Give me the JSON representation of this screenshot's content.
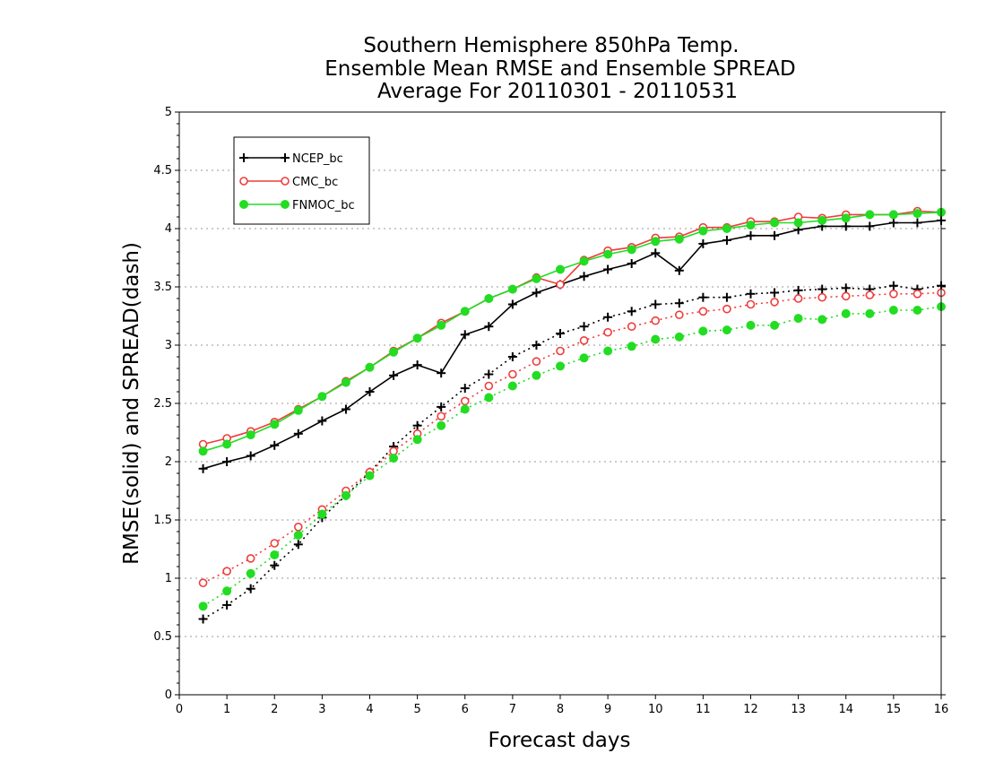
{
  "chart_data": {
    "type": "line",
    "title_lines": [
      "Southern Hemisphere 850hPa Temp.",
      "Ensemble Mean RMSE and Ensemble SPREAD",
      "Average For 20110301 - 20110531"
    ],
    "xlabel": "Forecast days",
    "ylabel": "RMSE(solid) and SPREAD(dash)",
    "xlim": [
      0,
      16
    ],
    "ylim": [
      0,
      5
    ],
    "x_ticks": [
      "0",
      "1",
      "2",
      "3",
      "4",
      "5",
      "6",
      "7",
      "8",
      "9",
      "10",
      "11",
      "12",
      "13",
      "14",
      "15",
      "16"
    ],
    "y_ticks": [
      "0",
      "0.5",
      "1",
      "1.5",
      "2",
      "2.5",
      "3",
      "3.5",
      "4",
      "4.5",
      "5"
    ],
    "grid": "horizontal dotted",
    "legend_position": "top-left",
    "legend": [
      "NCEP_bc",
      "CMC_bc",
      "FNMOC_bc"
    ],
    "x": [
      0.5,
      1,
      1.5,
      2,
      2.5,
      3,
      3.5,
      4,
      4.5,
      5,
      5.5,
      6,
      6.5,
      7,
      7.5,
      8,
      8.5,
      9,
      9.5,
      10,
      10.5,
      11,
      11.5,
      12,
      12.5,
      13,
      13.5,
      14,
      14.5,
      15,
      15.5,
      16
    ],
    "series": [
      {
        "name": "NCEP_bc",
        "kind": "rmse",
        "style": "solid",
        "marker": "plus",
        "color": "#000000",
        "values": [
          1.94,
          2.0,
          2.05,
          2.14,
          2.24,
          2.35,
          2.45,
          2.6,
          2.74,
          2.83,
          2.76,
          3.09,
          3.16,
          3.35,
          3.45,
          3.52,
          3.59,
          3.65,
          3.7,
          3.79,
          3.64,
          3.87,
          3.9,
          3.94,
          3.94,
          3.99,
          4.02,
          4.02,
          4.02,
          4.05,
          4.05,
          4.07
        ]
      },
      {
        "name": "CMC_bc",
        "kind": "rmse",
        "style": "solid",
        "marker": "circle-open",
        "color": "#f03c3c",
        "values": [
          2.15,
          2.2,
          2.26,
          2.34,
          2.45,
          2.56,
          2.69,
          2.81,
          2.95,
          3.06,
          3.19,
          3.29,
          3.4,
          3.48,
          3.58,
          3.52,
          3.73,
          3.81,
          3.84,
          3.92,
          3.93,
          4.01,
          4.01,
          4.06,
          4.06,
          4.1,
          4.09,
          4.12,
          4.12,
          4.12,
          4.15,
          4.14
        ]
      },
      {
        "name": "FNMOC_bc",
        "kind": "rmse",
        "style": "solid",
        "marker": "circle-filled",
        "color": "#22dd22",
        "values": [
          2.09,
          2.15,
          2.23,
          2.32,
          2.44,
          2.56,
          2.68,
          2.81,
          2.94,
          3.06,
          3.17,
          3.29,
          3.4,
          3.48,
          3.57,
          3.65,
          3.72,
          3.78,
          3.82,
          3.89,
          3.91,
          3.98,
          4.0,
          4.03,
          4.05,
          4.05,
          4.07,
          4.09,
          4.12,
          4.12,
          4.13,
          4.14
        ]
      },
      {
        "name": "NCEP_bc",
        "kind": "spread",
        "style": "dotted",
        "marker": "plus",
        "color": "#000000",
        "values": [
          0.65,
          0.77,
          0.91,
          1.11,
          1.29,
          1.52,
          1.71,
          1.91,
          2.13,
          2.31,
          2.47,
          2.63,
          2.75,
          2.9,
          3.0,
          3.1,
          3.16,
          3.24,
          3.29,
          3.35,
          3.36,
          3.41,
          3.41,
          3.44,
          3.45,
          3.47,
          3.48,
          3.49,
          3.48,
          3.51,
          3.48,
          3.51
        ]
      },
      {
        "name": "CMC_bc",
        "kind": "spread",
        "style": "dotted",
        "marker": "circle-open",
        "color": "#f03c3c",
        "values": [
          0.96,
          1.06,
          1.17,
          1.3,
          1.44,
          1.59,
          1.75,
          1.91,
          2.09,
          2.24,
          2.39,
          2.52,
          2.65,
          2.75,
          2.86,
          2.95,
          3.04,
          3.11,
          3.16,
          3.21,
          3.26,
          3.29,
          3.31,
          3.35,
          3.37,
          3.4,
          3.41,
          3.42,
          3.43,
          3.44,
          3.44,
          3.45
        ]
      },
      {
        "name": "FNMOC_bc",
        "kind": "spread",
        "style": "dotted",
        "marker": "circle-filled",
        "color": "#22dd22",
        "values": [
          0.76,
          0.89,
          1.04,
          1.2,
          1.37,
          1.55,
          1.71,
          1.88,
          2.03,
          2.19,
          2.31,
          2.45,
          2.55,
          2.65,
          2.74,
          2.82,
          2.89,
          2.95,
          2.99,
          3.05,
          3.07,
          3.12,
          3.13,
          3.17,
          3.17,
          3.23,
          3.22,
          3.27,
          3.27,
          3.3,
          3.3,
          3.33
        ]
      }
    ]
  }
}
